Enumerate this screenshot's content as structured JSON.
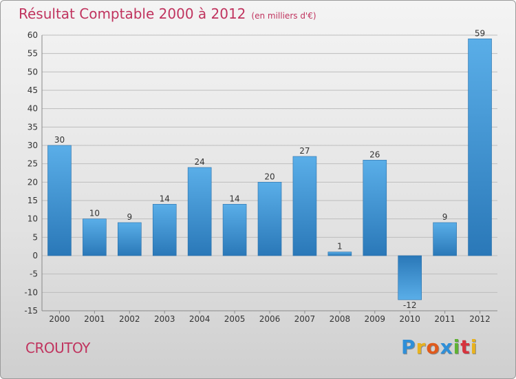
{
  "header": {
    "title": "Résultat Comptable 2000 à 2012",
    "unit": "(en milliers d'€)"
  },
  "footer": {
    "commune": "CROUTOY",
    "logo": [
      "P",
      "r",
      "o",
      "x",
      "i",
      "t",
      "i"
    ]
  },
  "colors": {
    "title": "#c0335e",
    "bar_light": "#5aaee8",
    "bar_dark": "#2a78b8",
    "grid": "#bdbdbd",
    "axis_text": "#333333"
  },
  "chart_data": {
    "type": "bar",
    "title": "Résultat Comptable 2000 à 2012",
    "subtitle": "(en milliers d'€)",
    "xlabel": "",
    "ylabel": "",
    "categories": [
      "2000",
      "2001",
      "2002",
      "2003",
      "2004",
      "2005",
      "2006",
      "2007",
      "2008",
      "2009",
      "2010",
      "2011",
      "2012"
    ],
    "values": [
      30,
      10,
      9,
      14,
      24,
      14,
      20,
      27,
      1,
      26,
      -12,
      9,
      59
    ],
    "ylim": [
      -15,
      60
    ],
    "yticks": [
      -15,
      -10,
      -5,
      0,
      5,
      10,
      15,
      20,
      25,
      30,
      35,
      40,
      45,
      50,
      55,
      60
    ],
    "grid": true
  }
}
